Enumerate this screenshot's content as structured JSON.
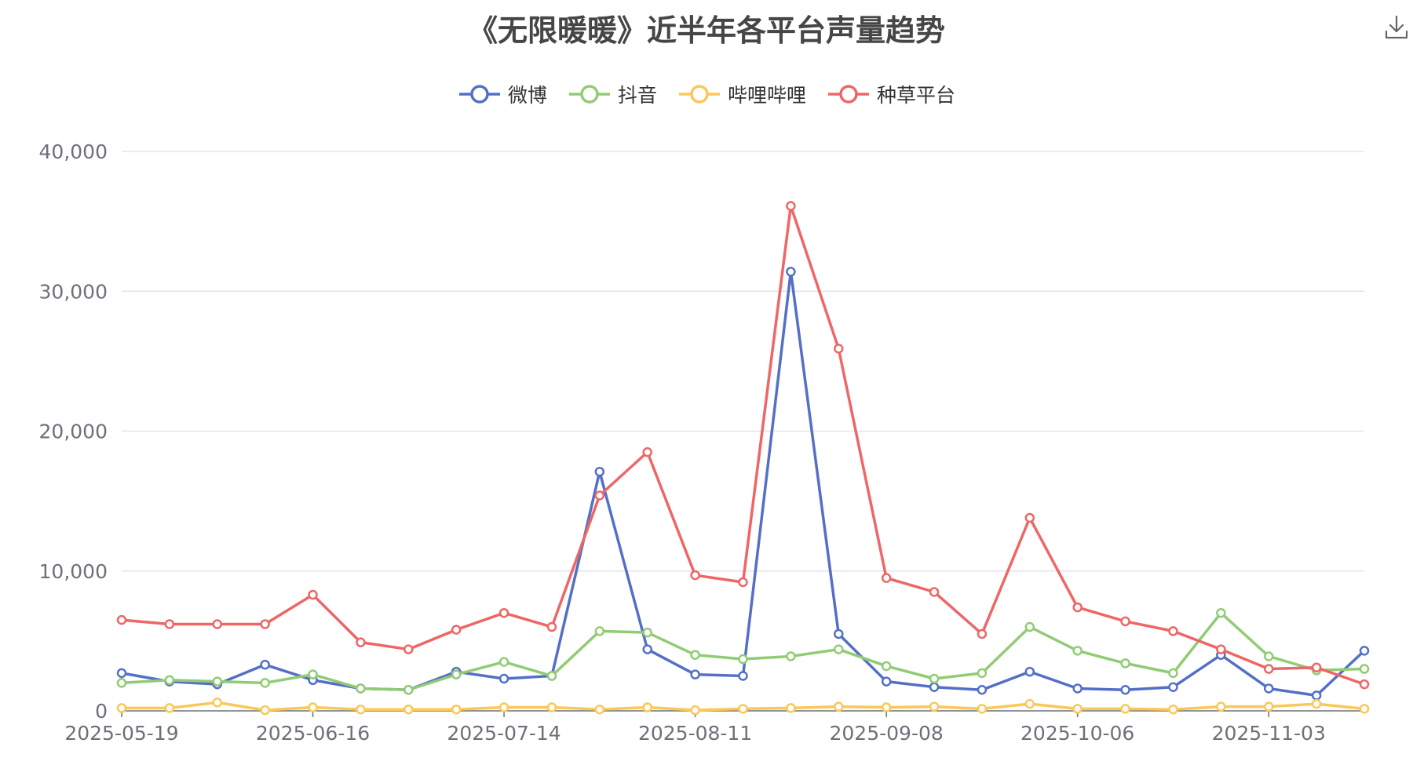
{
  "chart_data": {
    "type": "line",
    "title": "《无限暖暖》近半年各平台声量趋势",
    "xlabel": "",
    "ylabel": "",
    "ylim": [
      0,
      40000
    ],
    "yticks": [
      0,
      10000,
      20000,
      30000,
      40000
    ],
    "ytick_labels": [
      "0",
      "10,000",
      "20,000",
      "30,000",
      "40,000"
    ],
    "x": [
      "2025-05-19",
      "2025-05-26",
      "2025-06-02",
      "2025-06-09",
      "2025-06-16",
      "2025-06-23",
      "2025-06-30",
      "2025-07-07",
      "2025-07-14",
      "2025-07-21",
      "2025-07-28",
      "2025-08-04",
      "2025-08-11",
      "2025-08-18",
      "2025-08-25",
      "2025-09-01",
      "2025-09-08",
      "2025-09-15",
      "2025-09-22",
      "2025-09-29",
      "2025-10-06",
      "2025-10-13",
      "2025-10-20",
      "2025-10-27",
      "2025-11-03",
      "2025-11-10",
      "2025-11-17"
    ],
    "xtick_labels": [
      "2025-05-19",
      "2025-06-16",
      "2025-07-14",
      "2025-08-11",
      "2025-09-08",
      "2025-10-06",
      "2025-11-03"
    ],
    "grid": true,
    "legend_position": "top-center",
    "series": [
      {
        "name": "微博",
        "color": "#5470c6",
        "values": [
          2700,
          2100,
          1900,
          3300,
          2200,
          1600,
          1500,
          2800,
          2300,
          2500,
          17100,
          4400,
          2600,
          2500,
          31400,
          5500,
          2100,
          1700,
          1500,
          2800,
          1600,
          1500,
          1700,
          4000,
          1600,
          1100,
          4300
        ]
      },
      {
        "name": "抖音",
        "color": "#91cc75",
        "values": [
          2000,
          2200,
          2100,
          2000,
          2600,
          1600,
          1500,
          2600,
          3500,
          2500,
          5700,
          5600,
          4000,
          3700,
          3900,
          4400,
          3200,
          2300,
          2700,
          6000,
          4300,
          3400,
          2700,
          7000,
          3900,
          2900,
          3000
        ]
      },
      {
        "name": "哔哩哔哩",
        "color": "#fac858",
        "values": [
          200,
          200,
          600,
          50,
          250,
          100,
          100,
          100,
          250,
          250,
          100,
          250,
          50,
          150,
          200,
          300,
          250,
          300,
          150,
          500,
          150,
          150,
          100,
          300,
          300,
          500,
          150
        ]
      },
      {
        "name": "种草平台",
        "color": "#ee6666",
        "values": [
          6500,
          6200,
          6200,
          6200,
          8300,
          4900,
          4400,
          5800,
          7000,
          6000,
          15400,
          18500,
          9700,
          9200,
          36100,
          25900,
          9500,
          8500,
          5500,
          13800,
          7400,
          6400,
          5700,
          4400,
          3000,
          3100,
          1900
        ]
      }
    ]
  },
  "toolbar": {
    "download_icon": "download-icon"
  }
}
